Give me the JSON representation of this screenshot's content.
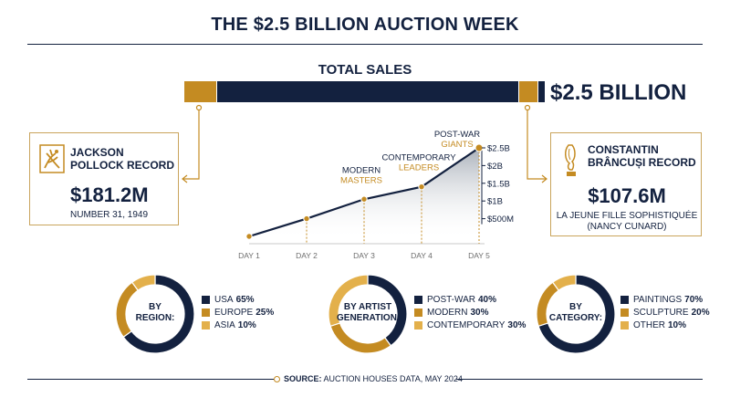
{
  "title": "THE $2.5 BILLION AUCTION WEEK",
  "total_sales": {
    "label": "TOTAL SALES",
    "value": "$2.5 BILLION"
  },
  "left_record": {
    "name": "JACKSON POLLOCK RECORD",
    "price": "$181.2M",
    "work": "NUMBER 31, 1949"
  },
  "right_record": {
    "name": "CONSTANTIN BRÂNCUȘI RECORD",
    "price": "$107.6M",
    "work_line1": "LA JEUNE FILLE SOPHISTIQUÉE",
    "work_line2": "(NANCY CUNARD)"
  },
  "colors": {
    "navy": "#13213f",
    "gold": "#c48b22",
    "light_gold": "#e3b04b",
    "card_border": "#c9a45c"
  },
  "icons": {
    "left_logo": "pollock-painter-icon",
    "right_logo": "brancusi-sculpture-icon"
  },
  "chart_data": [
    {
      "type": "line",
      "x": [
        "DAY 1",
        "DAY 2",
        "DAY 3",
        "DAY 4",
        "DAY 5"
      ],
      "series": [
        {
          "values": [
            0.0,
            0.5,
            1.05,
            1.4,
            2.5
          ]
        }
      ],
      "y_ticks": [
        "$500M",
        "$1B",
        "$1.5B",
        "$2B",
        "$2.5B"
      ],
      "ylim": [
        0,
        2.5
      ],
      "area_fill": true,
      "annotations": [
        {
          "x": "DAY 3",
          "line1": "MODERN",
          "line2": "MASTERS"
        },
        {
          "x": "DAY 4",
          "line1": "CONTEMPORARY",
          "line2": "LEADERS"
        },
        {
          "x": "DAY 5",
          "line1": "POST-WAR",
          "line2": "GIANTS"
        }
      ]
    },
    {
      "type": "pie",
      "center_line1": "BY",
      "center_line2": "REGION:",
      "categories": [
        "USA",
        "EUROPE",
        "ASIA"
      ],
      "values": [
        65,
        25,
        10
      ],
      "value_labels": [
        "65%",
        "25%",
        "10%"
      ],
      "colors": [
        "#13213f",
        "#c48b22",
        "#e3b04b"
      ]
    },
    {
      "type": "pie",
      "center_line1": "BY ARTIST",
      "center_line2": "GENERATION:",
      "categories": [
        "POST-WAR",
        "MODERN",
        "CONTEMPORARY"
      ],
      "values": [
        40,
        30,
        30
      ],
      "value_labels": [
        "40%",
        "30%",
        "30%"
      ],
      "colors": [
        "#13213f",
        "#c48b22",
        "#e3b04b"
      ]
    },
    {
      "type": "pie",
      "center_line1": "BY",
      "center_line2": "CATEGORY:",
      "categories": [
        "PAINTINGS",
        "SCULPTURE",
        "OTHER"
      ],
      "values": [
        70,
        20,
        10
      ],
      "value_labels": [
        "70%",
        "20%",
        "10%"
      ],
      "colors": [
        "#13213f",
        "#c48b22",
        "#e3b04b"
      ]
    }
  ],
  "footer": {
    "label": "SOURCE:",
    "text": "AUCTION HOUSES DATA, MAY 2024"
  }
}
